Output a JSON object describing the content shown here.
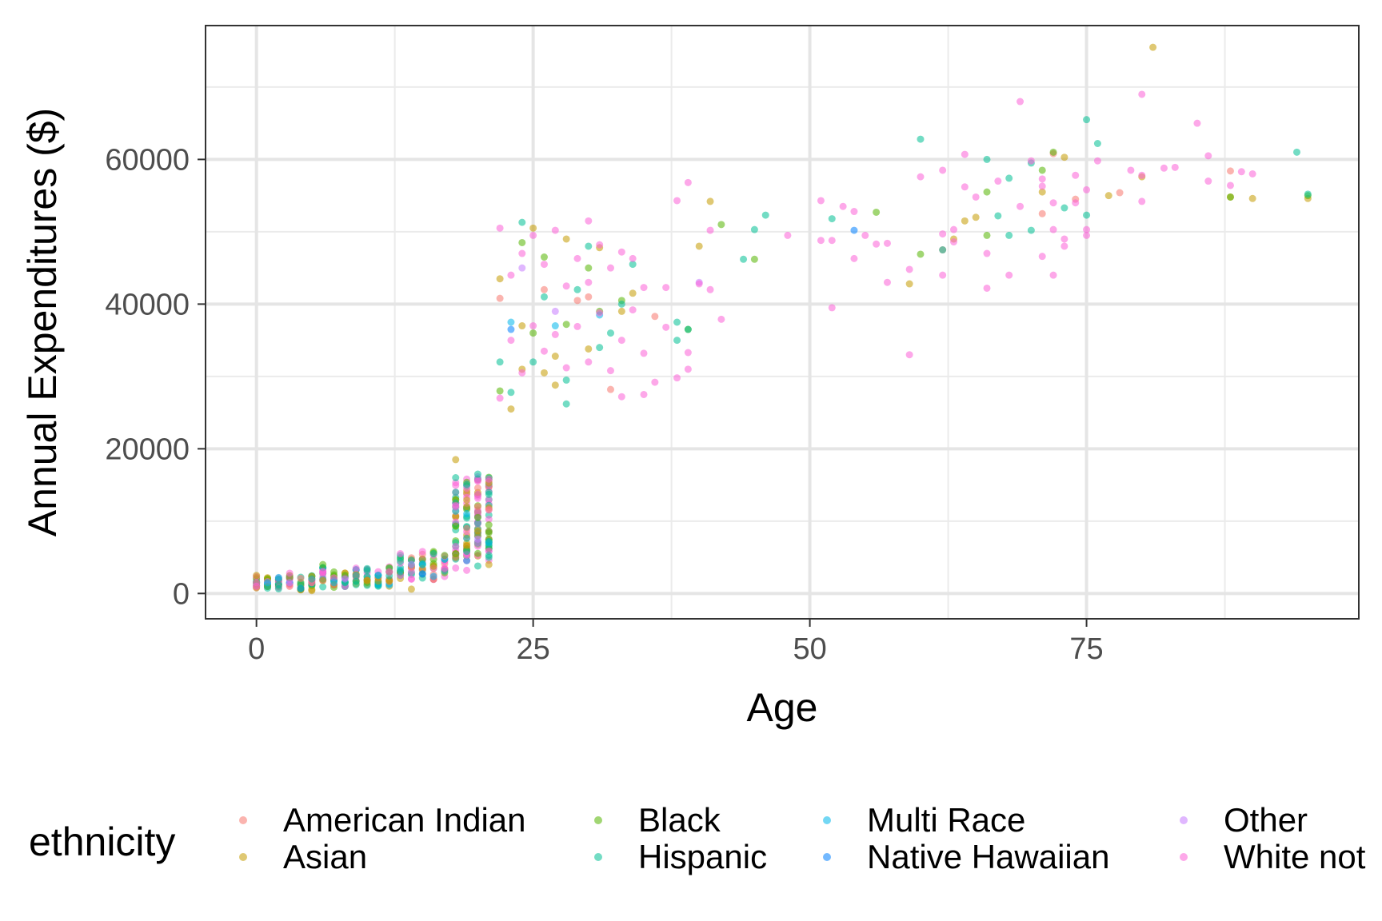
{
  "chart_data": {
    "type": "scatter",
    "title": "",
    "xlabel": "Age",
    "ylabel": "Annual Expenditures ($)",
    "xlim": [
      -4.6,
      99.6
    ],
    "ylim": [
      -3500,
      78500
    ],
    "xticks": [
      0,
      25,
      50,
      75
    ],
    "yticks": [
      0,
      20000,
      40000,
      60000
    ],
    "grid": true,
    "legend": {
      "title": "ethnicity",
      "placement": "bottom",
      "entries": [
        "American Indian",
        "Asian",
        "Black",
        "Hispanic",
        "Multi Race",
        "Native Hawaiian",
        "Other",
        "White not"
      ]
    },
    "colors": {
      "American Indian": "#f8766d",
      "Asian": "#c49a00",
      "Black": "#53b400",
      "Hispanic": "#00c094",
      "Multi Race": "#00b6eb",
      "Native Hawaiian": "#0080ff",
      "Other": "#c77cff",
      "White not": "#fb61d7"
    },
    "series": [
      {
        "name": "American Indian",
        "points": [
          [
            26,
            42000
          ],
          [
            36,
            38300
          ],
          [
            62,
            47500
          ],
          [
            71,
            52500
          ],
          [
            74,
            54500
          ],
          [
            78,
            55400
          ],
          [
            88,
            58400
          ],
          [
            32,
            28200
          ],
          [
            29,
            40500
          ],
          [
            5,
            1500
          ],
          [
            16,
            3500
          ],
          [
            19,
            9000
          ],
          [
            22,
            40800
          ],
          [
            30,
            41000
          ],
          [
            72,
            60800
          ],
          [
            20,
            12000
          ]
        ]
      },
      {
        "name": "Asian",
        "points": [
          [
            0,
            2500
          ],
          [
            5,
            400
          ],
          [
            10,
            1800
          ],
          [
            14,
            600
          ],
          [
            18,
            18500
          ],
          [
            19,
            12000
          ],
          [
            21,
            4000
          ],
          [
            23,
            25500
          ],
          [
            24,
            31000
          ],
          [
            25,
            50500
          ],
          [
            26,
            30500
          ],
          [
            27,
            28800
          ],
          [
            28,
            49000
          ],
          [
            30,
            33800
          ],
          [
            31,
            47800
          ],
          [
            34,
            41500
          ],
          [
            40,
            48000
          ],
          [
            41,
            54200
          ],
          [
            59,
            42800
          ],
          [
            63,
            49000
          ],
          [
            64,
            51500
          ],
          [
            65,
            52000
          ],
          [
            71,
            55500
          ],
          [
            73,
            60300
          ],
          [
            77,
            55000
          ],
          [
            80,
            57600
          ],
          [
            81,
            75500
          ],
          [
            88,
            54800
          ],
          [
            90,
            54600
          ],
          [
            95,
            54600
          ],
          [
            24,
            37000
          ],
          [
            27,
            32800
          ],
          [
            22,
            43500
          ],
          [
            33,
            39000
          ],
          [
            20,
            8000
          ]
        ]
      },
      {
        "name": "Black",
        "points": [
          [
            6,
            4000
          ],
          [
            12,
            3000
          ],
          [
            18,
            5500
          ],
          [
            20,
            10500
          ],
          [
            22,
            28000
          ],
          [
            24,
            48500
          ],
          [
            26,
            46500
          ],
          [
            28,
            37200
          ],
          [
            30,
            45000
          ],
          [
            33,
            40500
          ],
          [
            39,
            36500
          ],
          [
            42,
            51000
          ],
          [
            45,
            46200
          ],
          [
            56,
            52700
          ],
          [
            60,
            46900
          ],
          [
            66,
            55500
          ],
          [
            66,
            49500
          ],
          [
            71,
            58500
          ],
          [
            72,
            61000
          ],
          [
            88,
            54800
          ],
          [
            95,
            55000
          ],
          [
            25,
            36000
          ],
          [
            31,
            39000
          ]
        ]
      },
      {
        "name": "Hispanic",
        "points": [
          [
            2,
            2000
          ],
          [
            5,
            2000
          ],
          [
            9,
            2500
          ],
          [
            13,
            3000
          ],
          [
            16,
            5500
          ],
          [
            18,
            16000
          ],
          [
            20,
            16500
          ],
          [
            21,
            14000
          ],
          [
            22,
            32000
          ],
          [
            23,
            27800
          ],
          [
            24,
            51300
          ],
          [
            25,
            32000
          ],
          [
            26,
            41000
          ],
          [
            28,
            26200
          ],
          [
            28,
            29500
          ],
          [
            29,
            42000
          ],
          [
            30,
            48000
          ],
          [
            31,
            34000
          ],
          [
            32,
            36000
          ],
          [
            33,
            40000
          ],
          [
            34,
            45500
          ],
          [
            38,
            35000
          ],
          [
            38,
            37500
          ],
          [
            39,
            36500
          ],
          [
            44,
            46200
          ],
          [
            45,
            50300
          ],
          [
            46,
            52300
          ],
          [
            52,
            51800
          ],
          [
            60,
            62800
          ],
          [
            62,
            47500
          ],
          [
            66,
            60000
          ],
          [
            67,
            52200
          ],
          [
            68,
            49500
          ],
          [
            68,
            57400
          ],
          [
            70,
            50200
          ],
          [
            70,
            59500
          ],
          [
            73,
            53300
          ],
          [
            75,
            52300
          ],
          [
            75,
            65500
          ],
          [
            76,
            62200
          ],
          [
            94,
            61000
          ],
          [
            95,
            55200
          ],
          [
            21,
            5000
          ],
          [
            20,
            3800
          ]
        ]
      },
      {
        "name": "Multi Race",
        "points": [
          [
            1,
            1500
          ],
          [
            2,
            2200
          ],
          [
            7,
            1500
          ],
          [
            11,
            2500
          ],
          [
            15,
            4000
          ],
          [
            19,
            11000
          ],
          [
            23,
            37500
          ],
          [
            27,
            37000
          ],
          [
            31,
            38500
          ],
          [
            21,
            7000
          ]
        ]
      },
      {
        "name": "Native Hawaiian",
        "points": [
          [
            54,
            50200
          ],
          [
            23,
            36500
          ]
        ]
      },
      {
        "name": "Other",
        "points": [
          [
            3,
            1500
          ],
          [
            14,
            4000
          ],
          [
            20,
            7500
          ],
          [
            24,
            45000
          ],
          [
            27,
            39000
          ],
          [
            40,
            43000
          ],
          [
            8,
            2000
          ]
        ]
      },
      {
        "name": "White not",
        "points": [
          [
            0,
            1500
          ],
          [
            3,
            2800
          ],
          [
            6,
            3000
          ],
          [
            9,
            3500
          ],
          [
            12,
            3000
          ],
          [
            13,
            5500
          ],
          [
            15,
            5800
          ],
          [
            17,
            3500
          ],
          [
            18,
            6500
          ],
          [
            19,
            3200
          ],
          [
            20,
            15500
          ],
          [
            21,
            15800
          ],
          [
            22,
            50500
          ],
          [
            22,
            27000
          ],
          [
            23,
            44000
          ],
          [
            23,
            35000
          ],
          [
            24,
            47000
          ],
          [
            24,
            30500
          ],
          [
            25,
            49500
          ],
          [
            25,
            37000
          ],
          [
            26,
            45500
          ],
          [
            26,
            33500
          ],
          [
            27,
            50200
          ],
          [
            27,
            35800
          ],
          [
            28,
            42500
          ],
          [
            28,
            31200
          ],
          [
            29,
            46300
          ],
          [
            29,
            36900
          ],
          [
            30,
            51500
          ],
          [
            30,
            43000
          ],
          [
            30,
            32000
          ],
          [
            31,
            48200
          ],
          [
            31,
            38800
          ],
          [
            32,
            45000
          ],
          [
            32,
            30800
          ],
          [
            33,
            47200
          ],
          [
            33,
            35000
          ],
          [
            33,
            27200
          ],
          [
            34,
            46300
          ],
          [
            34,
            39200
          ],
          [
            35,
            42300
          ],
          [
            35,
            33200
          ],
          [
            35,
            27500
          ],
          [
            36,
            29200
          ],
          [
            37,
            42300
          ],
          [
            37,
            36800
          ],
          [
            38,
            54300
          ],
          [
            38,
            29800
          ],
          [
            39,
            56800
          ],
          [
            39,
            33300
          ],
          [
            39,
            31000
          ],
          [
            40,
            42800
          ],
          [
            41,
            50200
          ],
          [
            41,
            42000
          ],
          [
            42,
            37900
          ],
          [
            48,
            49500
          ],
          [
            51,
            54300
          ],
          [
            51,
            48800
          ],
          [
            52,
            48800
          ],
          [
            52,
            39500
          ],
          [
            53,
            53500
          ],
          [
            54,
            46300
          ],
          [
            54,
            52800
          ],
          [
            55,
            49500
          ],
          [
            56,
            48300
          ],
          [
            57,
            43000
          ],
          [
            57,
            48400
          ],
          [
            59,
            44800
          ],
          [
            59,
            33000
          ],
          [
            60,
            57600
          ],
          [
            62,
            58500
          ],
          [
            62,
            44000
          ],
          [
            62,
            49700
          ],
          [
            63,
            50300
          ],
          [
            63,
            48600
          ],
          [
            64,
            56200
          ],
          [
            64,
            60700
          ],
          [
            65,
            54800
          ],
          [
            66,
            42200
          ],
          [
            66,
            47000
          ],
          [
            67,
            57000
          ],
          [
            68,
            44000
          ],
          [
            69,
            68000
          ],
          [
            69,
            53500
          ],
          [
            70,
            59800
          ],
          [
            71,
            46600
          ],
          [
            71,
            56300
          ],
          [
            71,
            57300
          ],
          [
            72,
            44000
          ],
          [
            72,
            50300
          ],
          [
            72,
            54000
          ],
          [
            73,
            48000
          ],
          [
            73,
            49000
          ],
          [
            74,
            57800
          ],
          [
            74,
            54000
          ],
          [
            75,
            50300
          ],
          [
            75,
            55800
          ],
          [
            75,
            49500
          ],
          [
            76,
            59800
          ],
          [
            79,
            58500
          ],
          [
            80,
            69000
          ],
          [
            80,
            54200
          ],
          [
            80,
            57800
          ],
          [
            82,
            58800
          ],
          [
            83,
            58900
          ],
          [
            85,
            65000
          ],
          [
            86,
            57000
          ],
          [
            86,
            60500
          ],
          [
            88,
            56400
          ],
          [
            89,
            58300
          ],
          [
            90,
            58000
          ]
        ]
      }
    ],
    "dense_clusters": [
      {
        "x_min": 0,
        "x_max": 17,
        "y_range_by_age": [
          [
            0,
            700,
            2400
          ],
          [
            1,
            600,
            2200
          ],
          [
            2,
            600,
            2200
          ],
          [
            3,
            700,
            2500
          ],
          [
            4,
            500,
            2600
          ],
          [
            5,
            400,
            2600
          ],
          [
            6,
            700,
            3600
          ],
          [
            7,
            800,
            3200
          ],
          [
            8,
            900,
            3500
          ],
          [
            9,
            800,
            3400
          ],
          [
            10,
            900,
            3500
          ],
          [
            11,
            1000,
            3300
          ],
          [
            12,
            1000,
            3700
          ],
          [
            13,
            1500,
            5500
          ],
          [
            14,
            1700,
            5800
          ],
          [
            15,
            1800,
            5500
          ],
          [
            16,
            1900,
            5800
          ],
          [
            17,
            2300,
            5500
          ]
        ]
      },
      {
        "x_min": 18,
        "x_max": 21,
        "y_range_by_age": [
          [
            18,
            3500,
            15500
          ],
          [
            19,
            4500,
            16000
          ],
          [
            20,
            5000,
            16500
          ],
          [
            21,
            4500,
            16200
          ]
        ]
      }
    ]
  }
}
